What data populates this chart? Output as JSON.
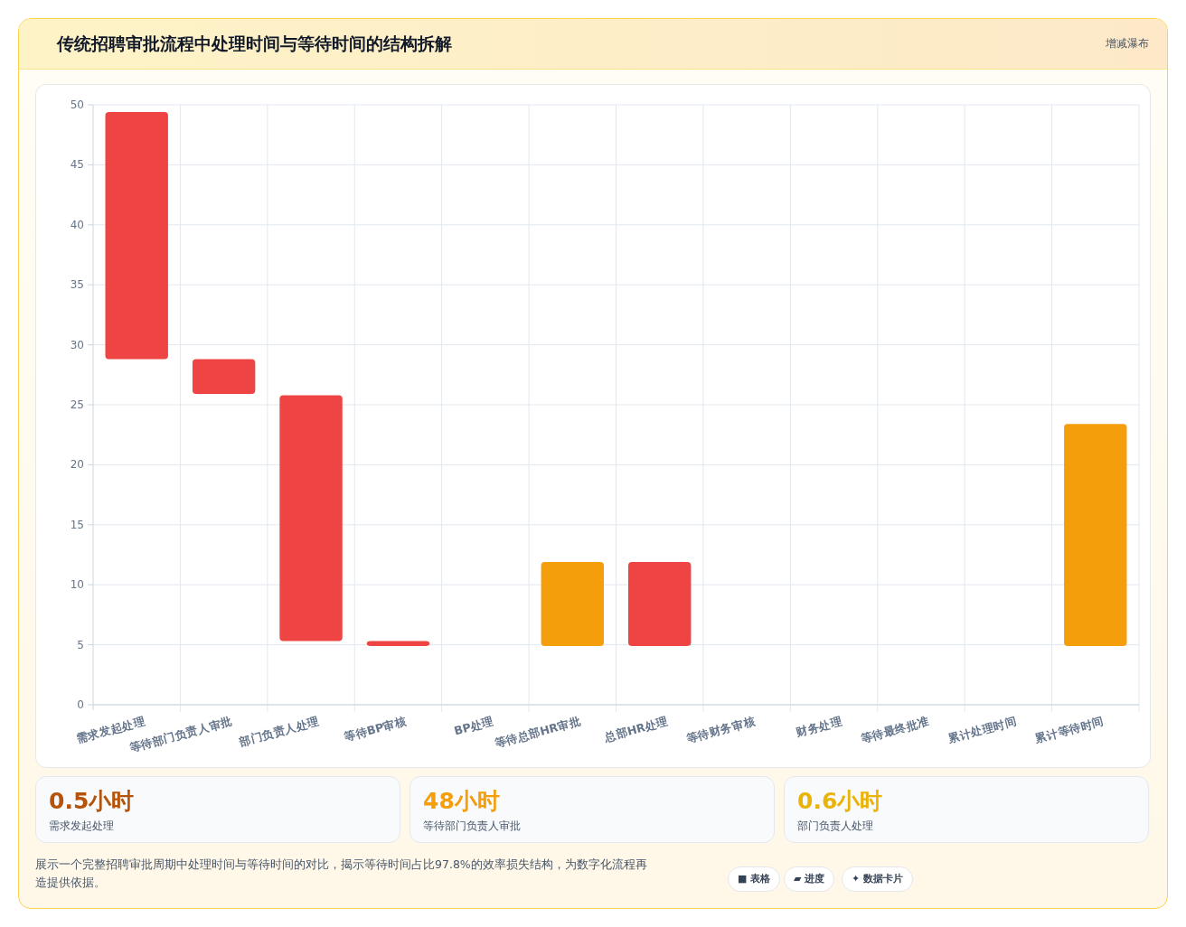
{
  "chart_data": {
    "type": "bar",
    "title": "传统招聘审批流程中处理时间与等待时间的结构拆解",
    "categories": [
      "需求发起处理",
      "等待部门负责人审批",
      "部门负责人处理",
      "等待BP审核",
      "BP处理",
      "等待总部HR审批",
      "总部HR处理",
      "等待财务审核",
      "财务处理",
      "等待最终批准",
      "累计处理时间",
      "累计等待时间"
    ],
    "values": [
      20.6,
      2.9,
      20.5,
      0.4,
      null,
      7,
      7,
      null,
      null,
      null,
      null,
      18.5
    ],
    "base": [
      28.8,
      25.9,
      5.3,
      4.9,
      null,
      4.9,
      4.9,
      null,
      null,
      null,
      null,
      4.9
    ],
    "colors": [
      "#ef4444",
      "#ef4444",
      "#ef4444",
      "#ef4444",
      null,
      "#f59e0b",
      "#ef4444",
      null,
      null,
      null,
      null,
      "#f59e0b"
    ],
    "ylim": [
      0,
      50
    ],
    "yticks": [
      0,
      5,
      10,
      15,
      20,
      25,
      30,
      35,
      40,
      45,
      50
    ],
    "grid": true,
    "annotations": [
      "增减瀑布",
      "0.5小时",
      "需求发起处理",
      "48小时",
      "等待部门负责人审批",
      "0.6小时",
      "部门负责人处理",
      "展示一个完整招聘审批周期中处理时间与等待时间的对比，揭示等待时间占比97.8%的效率损失结构，为数字化流程再造提供依据。",
      "■ 表格",
      "▰ 进度",
      "✦ 数据卡片"
    ]
  }
}
